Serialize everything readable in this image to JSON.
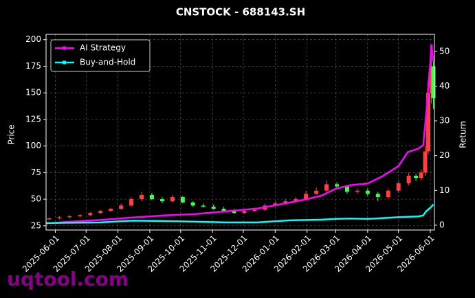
{
  "chart_data": {
    "type": "candlestick",
    "title": "CNSTOCK - 688143.SH",
    "ylabel": "Price",
    "y2label": "Return",
    "watermark": "uqtool.com",
    "background": "#000000",
    "grid": true,
    "legend": "upper left",
    "xlim": [
      "2025-05-23",
      "2026-06-05"
    ],
    "xticks": [
      "2025-06-01",
      "2025-07-01",
      "2025-08-01",
      "2025-09-01",
      "2025-10-01",
      "2025-11-01",
      "2025-12-01",
      "2026-01-01",
      "2026-02-01",
      "2026-03-01",
      "2026-04-01",
      "2026-05-01",
      "2026-06-01"
    ],
    "ylim": [
      21,
      205
    ],
    "yticks": [
      25,
      50,
      75,
      100,
      125,
      150,
      175,
      200
    ],
    "y2lim": [
      -1.4,
      54.9
    ],
    "y2ticks": [
      0,
      10,
      20,
      30,
      40,
      50
    ],
    "candles": {
      "up_color": "#ff4040",
      "down_color": "#40ff40",
      "x": [
        "2025-05-26",
        "2025-06-05",
        "2025-06-15",
        "2025-06-25",
        "2025-07-05",
        "2025-07-15",
        "2025-07-25",
        "2025-08-04",
        "2025-08-14",
        "2025-08-24",
        "2025-09-03",
        "2025-09-13",
        "2025-09-23",
        "2025-10-03",
        "2025-10-13",
        "2025-10-23",
        "2025-11-02",
        "2025-11-12",
        "2025-11-22",
        "2025-12-02",
        "2025-12-12",
        "2025-12-22",
        "2026-01-01",
        "2026-01-11",
        "2026-01-21",
        "2026-01-31",
        "2026-02-10",
        "2026-02-20",
        "2026-03-02",
        "2026-03-12",
        "2026-03-22",
        "2026-04-01",
        "2026-04-11",
        "2026-04-21",
        "2026-05-01",
        "2026-05-11",
        "2026-05-18",
        "2026-05-23",
        "2026-05-27",
        "2026-05-30",
        "2026-06-02",
        "2026-06-04"
      ],
      "open": [
        31,
        32,
        33,
        34,
        35,
        37,
        39,
        41,
        44,
        50,
        54,
        50,
        48,
        52,
        47,
        44,
        43,
        41,
        39,
        37,
        39,
        40,
        44,
        46,
        48,
        50,
        55,
        58,
        64,
        62,
        57,
        58,
        55,
        52,
        58,
        65,
        72,
        70,
        75,
        95,
        150,
        175
      ],
      "high": [
        33,
        34,
        35,
        36,
        38,
        40,
        42,
        46,
        52,
        57,
        56,
        52,
        54,
        53,
        48,
        46,
        45,
        43,
        41,
        41,
        42,
        46,
        48,
        50,
        52,
        58,
        61,
        68,
        66,
        63,
        60,
        60,
        57,
        60,
        67,
        75,
        74,
        78,
        100,
        160,
        190,
        180
      ],
      "low": [
        30,
        31,
        32,
        33,
        34,
        36,
        38,
        40,
        43,
        48,
        49,
        46,
        47,
        46,
        43,
        42,
        40,
        38,
        36,
        36,
        38,
        39,
        43,
        45,
        47,
        49,
        54,
        56,
        60,
        55,
        55,
        53,
        48,
        50,
        56,
        63,
        67,
        68,
        72,
        92,
        140,
        135
      ],
      "close": [
        32,
        33,
        34,
        35,
        37,
        39,
        41,
        44,
        50,
        54,
        50,
        48,
        52,
        47,
        44,
        43,
        41,
        39,
        37,
        39,
        40,
        44,
        46,
        48,
        50,
        55,
        58,
        64,
        62,
        57,
        58,
        55,
        52,
        58,
        65,
        72,
        70,
        75,
        95,
        150,
        175,
        145
      ]
    },
    "series": [
      {
        "name": "AI Strategy",
        "color": "#ff00ff",
        "axis": "y2",
        "x": [
          "2025-05-23",
          "2025-06-15",
          "2025-07-15",
          "2025-08-15",
          "2025-09-15",
          "2025-10-15",
          "2025-11-15",
          "2025-12-15",
          "2026-01-15",
          "2026-02-01",
          "2026-02-15",
          "2026-03-01",
          "2026-03-15",
          "2026-04-01",
          "2026-04-15",
          "2026-05-01",
          "2026-05-10",
          "2026-05-20",
          "2026-05-25",
          "2026-05-28",
          "2026-05-30",
          "2026-06-01",
          "2026-06-02",
          "2026-06-04"
        ],
        "values": [
          0.5,
          1,
          1.5,
          2.2,
          2.8,
          3.2,
          4,
          4.8,
          6.5,
          7.5,
          8.5,
          10.5,
          11.5,
          12,
          14,
          17,
          21,
          22,
          23,
          32,
          40,
          47,
          52,
          47
        ]
      },
      {
        "name": "Buy-and-Hold",
        "color": "#00ffff",
        "axis": "y2",
        "x": [
          "2025-05-23",
          "2025-06-15",
          "2025-07-15",
          "2025-08-15",
          "2025-09-15",
          "2025-10-15",
          "2025-11-15",
          "2025-12-15",
          "2026-01-15",
          "2026-02-01",
          "2026-02-15",
          "2026-03-01",
          "2026-03-15",
          "2026-04-01",
          "2026-04-15",
          "2026-05-01",
          "2026-05-10",
          "2026-05-20",
          "2026-05-25",
          "2026-05-28",
          "2026-05-30",
          "2026-06-01",
          "2026-06-02",
          "2026-06-04"
        ],
        "values": [
          0.6,
          0.7,
          0.8,
          1.3,
          1.2,
          1,
          0.8,
          0.8,
          1.4,
          1.5,
          1.6,
          1.8,
          1.9,
          1.8,
          2,
          2.3,
          2.4,
          2.5,
          2.8,
          4,
          4.5,
          5,
          5.3,
          6
        ]
      }
    ]
  }
}
